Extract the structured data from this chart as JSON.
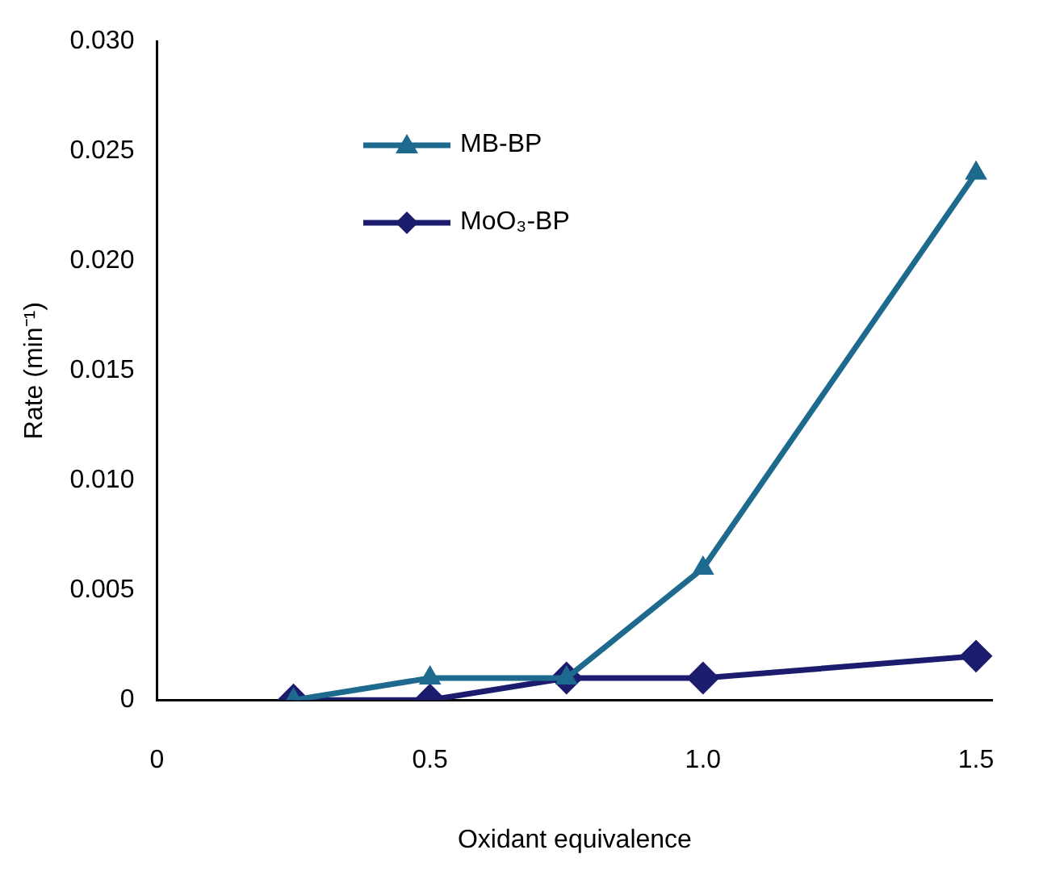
{
  "chart_data": {
    "type": "line",
    "xlabel": "Oxidant equivalence",
    "ylabel": "Rate (min⁻¹)",
    "x": [
      0.25,
      0.5,
      0.75,
      1.0,
      1.5
    ],
    "series": [
      {
        "name": "MB-BP",
        "color": "#1d6a8e",
        "marker": "triangle",
        "values": [
          0,
          0.001,
          0.001,
          0.006,
          0.024
        ]
      },
      {
        "name": "MoO₃-BP",
        "color": "#1c1c6e",
        "marker": "diamond",
        "values": [
          0,
          0,
          0.001,
          0.001,
          0.002
        ]
      }
    ],
    "xlim": [
      0,
      1.53
    ],
    "xticks": [
      0,
      0.5,
      {
        "value": 1,
        "label": "1.0"
      },
      1.5
    ],
    "ylim": [
      0,
      0.03
    ],
    "yticks": [
      0,
      {
        "value": 0.005,
        "label": "0.005"
      },
      {
        "value": 0.01,
        "label": "0.010"
      },
      {
        "value": 0.015,
        "label": "0.015"
      },
      {
        "value": 0.02,
        "label": "0.020"
      },
      {
        "value": 0.025,
        "label": "0.025"
      },
      {
        "value": 0.03,
        "label": "0.030"
      }
    ],
    "grid": false,
    "legend": "top left",
    "line_style": "solid"
  }
}
